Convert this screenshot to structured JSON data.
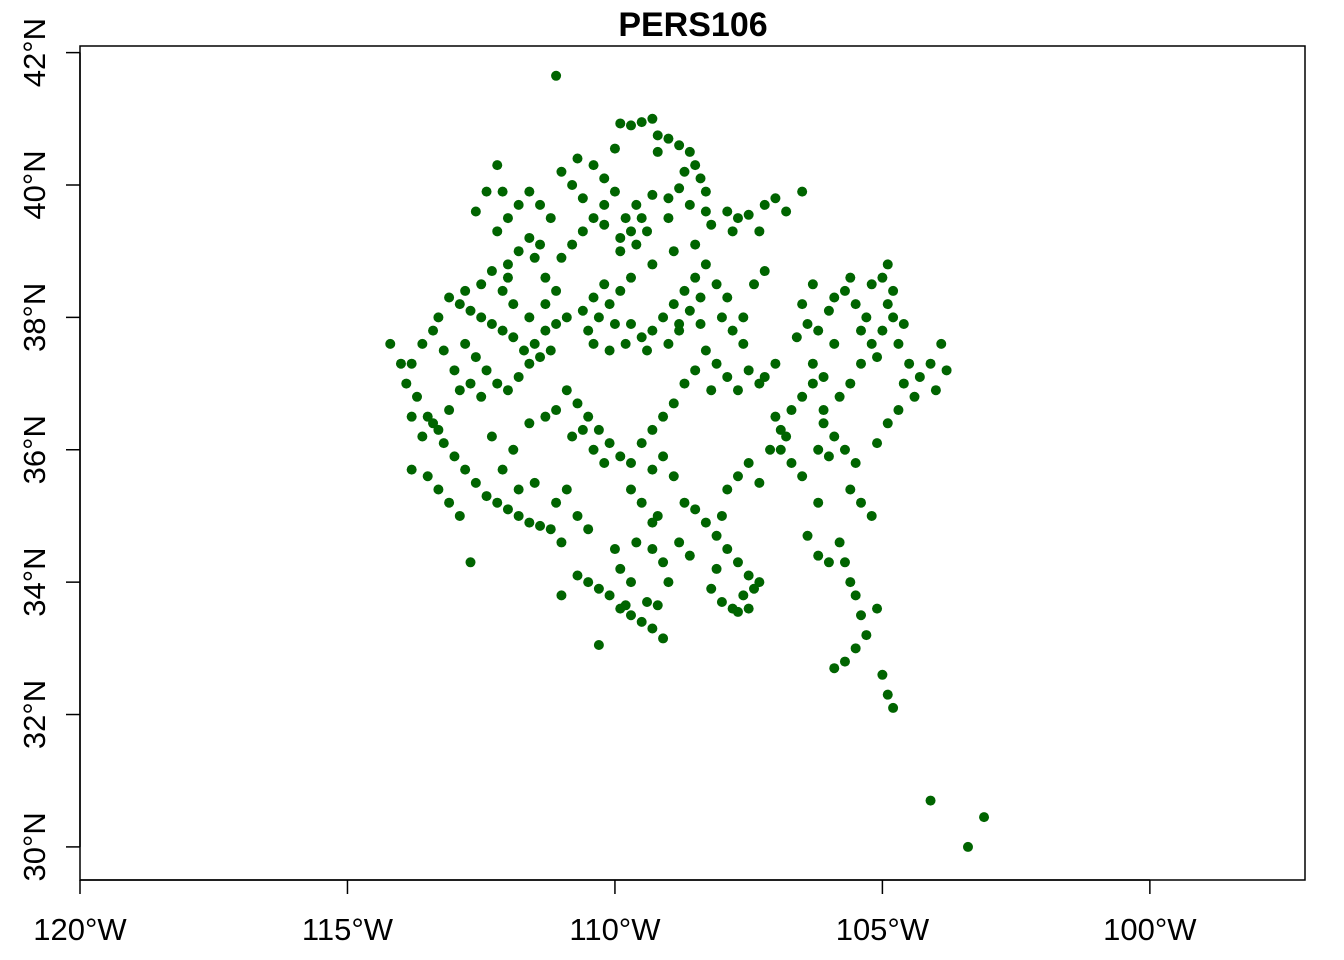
{
  "chart_data": {
    "type": "scatter",
    "title": "PERS106",
    "xlabel": "",
    "ylabel": "",
    "xlim": [
      -120,
      -97.1
    ],
    "ylim": [
      29.5,
      42.1
    ],
    "grid": false,
    "legend": "none",
    "point_color": "#006400",
    "x_ticks": [
      {
        "value": -120,
        "label": "120°W"
      },
      {
        "value": -115,
        "label": "115°W"
      },
      {
        "value": -110,
        "label": "110°W"
      },
      {
        "value": -105,
        "label": "105°W"
      },
      {
        "value": -100,
        "label": "100°W"
      }
    ],
    "y_ticks": [
      {
        "value": 30,
        "label": "30°N"
      },
      {
        "value": 32,
        "label": "32°N"
      },
      {
        "value": 34,
        "label": "34°N"
      },
      {
        "value": 36,
        "label": "36°N"
      },
      {
        "value": 38,
        "label": "38°N"
      },
      {
        "value": 40,
        "label": "40°N"
      },
      {
        "value": 42,
        "label": "42°N"
      }
    ],
    "points": [
      [
        -111.1,
        41.65
      ],
      [
        -109.3,
        41.0
      ],
      [
        -109.5,
        40.95
      ],
      [
        -109.7,
        40.9
      ],
      [
        -109.9,
        40.93
      ],
      [
        -110.0,
        40.55
      ],
      [
        -109.2,
        40.75
      ],
      [
        -109.0,
        40.7
      ],
      [
        -108.8,
        40.6
      ],
      [
        -108.6,
        40.5
      ],
      [
        -108.5,
        40.3
      ],
      [
        -109.2,
        40.5
      ],
      [
        -108.7,
        40.2
      ],
      [
        -108.4,
        40.1
      ],
      [
        -108.3,
        39.9
      ],
      [
        -108.8,
        39.95
      ],
      [
        -109.0,
        39.8
      ],
      [
        -109.3,
        39.85
      ],
      [
        -109.6,
        39.7
      ],
      [
        -109.8,
        39.5
      ],
      [
        -110.2,
        39.4
      ],
      [
        -109.9,
        39.2
      ],
      [
        -109.6,
        39.1
      ],
      [
        -109.4,
        39.3
      ],
      [
        -109.0,
        39.5
      ],
      [
        -108.6,
        39.7
      ],
      [
        -108.3,
        39.6
      ],
      [
        -107.9,
        39.6
      ],
      [
        -107.7,
        39.5
      ],
      [
        -107.5,
        39.55
      ],
      [
        -107.2,
        39.7
      ],
      [
        -107.0,
        39.8
      ],
      [
        -106.8,
        39.6
      ],
      [
        -106.5,
        39.9
      ],
      [
        -107.3,
        39.3
      ],
      [
        -107.8,
        39.3
      ],
      [
        -108.2,
        39.4
      ],
      [
        -108.5,
        39.1
      ],
      [
        -108.9,
        39.0
      ],
      [
        -109.3,
        38.8
      ],
      [
        -109.7,
        38.6
      ],
      [
        -109.9,
        38.4
      ],
      [
        -110.1,
        38.2
      ],
      [
        -110.3,
        38.0
      ],
      [
        -110.5,
        37.8
      ],
      [
        -110.4,
        37.6
      ],
      [
        -110.1,
        37.5
      ],
      [
        -109.8,
        37.6
      ],
      [
        -109.5,
        37.7
      ],
      [
        -109.3,
        37.8
      ],
      [
        -109.1,
        38.0
      ],
      [
        -108.9,
        38.2
      ],
      [
        -108.7,
        38.4
      ],
      [
        -108.5,
        38.6
      ],
      [
        -108.3,
        38.8
      ],
      [
        -108.1,
        38.5
      ],
      [
        -107.9,
        38.3
      ],
      [
        -107.6,
        38.0
      ],
      [
        -107.4,
        38.5
      ],
      [
        -107.2,
        38.7
      ],
      [
        -108.0,
        38.0
      ],
      [
        -108.4,
        37.9
      ],
      [
        -108.8,
        37.8
      ],
      [
        -109.0,
        37.6
      ],
      [
        -109.4,
        37.5
      ],
      [
        -109.7,
        37.9
      ],
      [
        -110.0,
        37.9
      ],
      [
        -110.2,
        38.5
      ],
      [
        -110.4,
        38.3
      ],
      [
        -110.6,
        38.1
      ],
      [
        -110.9,
        38.0
      ],
      [
        -111.1,
        37.9
      ],
      [
        -111.3,
        37.8
      ],
      [
        -111.5,
        37.6
      ],
      [
        -111.7,
        37.5
      ],
      [
        -111.9,
        37.7
      ],
      [
        -112.1,
        37.8
      ],
      [
        -112.3,
        37.9
      ],
      [
        -112.5,
        38.0
      ],
      [
        -112.7,
        38.1
      ],
      [
        -112.9,
        38.2
      ],
      [
        -113.1,
        38.3
      ],
      [
        -112.8,
        37.6
      ],
      [
        -112.6,
        37.4
      ],
      [
        -112.4,
        37.2
      ],
      [
        -112.2,
        37.0
      ],
      [
        -112.0,
        36.9
      ],
      [
        -111.8,
        37.1
      ],
      [
        -111.6,
        37.3
      ],
      [
        -111.4,
        37.4
      ],
      [
        -111.2,
        37.5
      ],
      [
        -112.0,
        38.6
      ],
      [
        -112.3,
        38.7
      ],
      [
        -112.5,
        38.5
      ],
      [
        -112.8,
        38.4
      ],
      [
        -113.3,
        38.0
      ],
      [
        -113.6,
        37.6
      ],
      [
        -113.8,
        37.3
      ],
      [
        -113.9,
        37.0
      ],
      [
        -113.7,
        36.8
      ],
      [
        -113.5,
        36.5
      ],
      [
        -113.3,
        36.3
      ],
      [
        -113.1,
        36.6
      ],
      [
        -112.9,
        36.9
      ],
      [
        -114.2,
        37.6
      ],
      [
        -114.0,
        37.3
      ],
      [
        -113.8,
        36.5
      ],
      [
        -113.6,
        36.2
      ],
      [
        -113.4,
        36.4
      ],
      [
        -113.2,
        36.1
      ],
      [
        -113.0,
        35.9
      ],
      [
        -112.8,
        35.7
      ],
      [
        -112.6,
        35.5
      ],
      [
        -112.4,
        35.3
      ],
      [
        -112.2,
        35.2
      ],
      [
        -112.0,
        35.1
      ],
      [
        -111.8,
        35.0
      ],
      [
        -111.6,
        34.9
      ],
      [
        -111.4,
        34.85
      ],
      [
        -113.8,
        35.7
      ],
      [
        -113.5,
        35.6
      ],
      [
        -113.3,
        35.4
      ],
      [
        -113.1,
        35.2
      ],
      [
        -112.9,
        35.0
      ],
      [
        -112.7,
        34.3
      ],
      [
        -111.0,
        34.6
      ],
      [
        -111.2,
        34.8
      ],
      [
        -111.0,
        33.8
      ],
      [
        -110.7,
        34.1
      ],
      [
        -110.5,
        34.0
      ],
      [
        -110.3,
        33.9
      ],
      [
        -110.1,
        33.8
      ],
      [
        -109.9,
        33.6
      ],
      [
        -109.7,
        33.5
      ],
      [
        -109.5,
        33.4
      ],
      [
        -109.3,
        33.3
      ],
      [
        -109.1,
        33.15
      ],
      [
        -110.3,
        33.05
      ],
      [
        -109.8,
        33.65
      ],
      [
        -109.4,
        33.7
      ],
      [
        -109.2,
        33.65
      ],
      [
        -110.0,
        34.5
      ],
      [
        -109.9,
        34.2
      ],
      [
        -109.7,
        34.0
      ],
      [
        -109.6,
        34.6
      ],
      [
        -109.3,
        34.5
      ],
      [
        -109.1,
        34.3
      ],
      [
        -109.0,
        34.0
      ],
      [
        -109.2,
        35.0
      ],
      [
        -109.5,
        35.2
      ],
      [
        -109.7,
        35.4
      ],
      [
        -109.3,
        35.7
      ],
      [
        -109.1,
        35.9
      ],
      [
        -108.9,
        35.6
      ],
      [
        -108.7,
        35.2
      ],
      [
        -108.5,
        35.1
      ],
      [
        -108.3,
        34.9
      ],
      [
        -108.1,
        34.7
      ],
      [
        -107.9,
        34.5
      ],
      [
        -107.7,
        34.3
      ],
      [
        -107.5,
        34.1
      ],
      [
        -107.3,
        34.0
      ],
      [
        -107.6,
        33.8
      ],
      [
        -107.8,
        33.6
      ],
      [
        -108.0,
        33.7
      ],
      [
        -108.2,
        33.9
      ],
      [
        -108.1,
        34.2
      ],
      [
        -108.0,
        35.0
      ],
      [
        -107.9,
        35.4
      ],
      [
        -107.7,
        35.6
      ],
      [
        -107.5,
        35.8
      ],
      [
        -107.3,
        35.5
      ],
      [
        -107.1,
        36.0
      ],
      [
        -106.9,
        36.3
      ],
      [
        -106.7,
        36.6
      ],
      [
        -106.5,
        36.8
      ],
      [
        -106.3,
        37.0
      ],
      [
        -106.1,
        36.4
      ],
      [
        -105.9,
        36.2
      ],
      [
        -105.7,
        36.0
      ],
      [
        -105.5,
        35.8
      ],
      [
        -105.6,
        35.4
      ],
      [
        -105.4,
        35.2
      ],
      [
        -105.2,
        35.0
      ],
      [
        -105.8,
        34.6
      ],
      [
        -105.7,
        34.3
      ],
      [
        -105.6,
        34.0
      ],
      [
        -105.5,
        33.8
      ],
      [
        -105.4,
        33.5
      ],
      [
        -105.3,
        33.2
      ],
      [
        -105.5,
        33.0
      ],
      [
        -105.7,
        32.8
      ],
      [
        -105.9,
        32.7
      ],
      [
        -105.1,
        33.6
      ],
      [
        -105.0,
        32.6
      ],
      [
        -104.9,
        32.3
      ],
      [
        -104.8,
        32.1
      ],
      [
        -104.1,
        30.7
      ],
      [
        -103.1,
        30.45
      ],
      [
        -103.4,
        30.0
      ],
      [
        -106.2,
        35.2
      ],
      [
        -106.4,
        34.7
      ],
      [
        -106.2,
        34.4
      ],
      [
        -106.0,
        34.3
      ],
      [
        -106.5,
        35.6
      ],
      [
        -106.7,
        35.8
      ],
      [
        -106.9,
        36.0
      ],
      [
        -106.2,
        36.0
      ],
      [
        -106.0,
        35.9
      ],
      [
        -106.1,
        36.6
      ],
      [
        -105.8,
        36.8
      ],
      [
        -105.6,
        37.0
      ],
      [
        -105.4,
        37.3
      ],
      [
        -105.2,
        37.6
      ],
      [
        -105.0,
        37.8
      ],
      [
        -104.8,
        38.0
      ],
      [
        -104.6,
        37.9
      ],
      [
        -105.3,
        38.0
      ],
      [
        -105.5,
        38.2
      ],
      [
        -105.7,
        38.4
      ],
      [
        -105.9,
        38.3
      ],
      [
        -105.2,
        38.5
      ],
      [
        -105.0,
        38.6
      ],
      [
        -104.9,
        38.8
      ],
      [
        -105.6,
        38.6
      ],
      [
        -106.3,
        38.5
      ],
      [
        -106.5,
        38.2
      ],
      [
        -106.4,
        37.9
      ],
      [
        -106.6,
        37.7
      ],
      [
        -106.3,
        37.3
      ],
      [
        -106.1,
        37.1
      ],
      [
        -105.9,
        37.6
      ],
      [
        -104.7,
        37.6
      ],
      [
        -104.5,
        37.3
      ],
      [
        -104.3,
        37.1
      ],
      [
        -104.1,
        37.3
      ],
      [
        -103.9,
        37.6
      ],
      [
        -103.8,
        37.2
      ],
      [
        -104.0,
        36.9
      ],
      [
        -104.4,
        36.8
      ],
      [
        -104.7,
        36.6
      ],
      [
        -104.9,
        36.4
      ],
      [
        -105.1,
        36.1
      ],
      [
        -106.8,
        36.2
      ],
      [
        -107.0,
        36.5
      ],
      [
        -107.3,
        37.0
      ],
      [
        -107.5,
        37.2
      ],
      [
        -107.7,
        36.9
      ],
      [
        -107.9,
        37.1
      ],
      [
        -108.1,
        37.3
      ],
      [
        -108.3,
        37.5
      ],
      [
        -108.5,
        37.2
      ],
      [
        -108.7,
        37.0
      ],
      [
        -108.9,
        36.7
      ],
      [
        -109.1,
        36.5
      ],
      [
        -109.3,
        36.3
      ],
      [
        -109.5,
        36.1
      ],
      [
        -109.7,
        35.8
      ],
      [
        -109.9,
        35.9
      ],
      [
        -110.1,
        36.1
      ],
      [
        -110.3,
        36.3
      ],
      [
        -110.5,
        36.5
      ],
      [
        -110.7,
        36.7
      ],
      [
        -110.9,
        36.9
      ],
      [
        -111.1,
        36.6
      ],
      [
        -110.6,
        36.3
      ],
      [
        -110.4,
        36.0
      ],
      [
        -110.2,
        35.8
      ],
      [
        -110.8,
        36.2
      ],
      [
        -111.3,
        36.5
      ],
      [
        -111.6,
        36.4
      ],
      [
        -111.9,
        36.0
      ],
      [
        -112.1,
        35.7
      ],
      [
        -111.5,
        35.5
      ],
      [
        -111.8,
        35.4
      ],
      [
        -112.3,
        36.2
      ],
      [
        -112.5,
        36.8
      ],
      [
        -112.7,
        37.0
      ],
      [
        -113.0,
        37.2
      ],
      [
        -113.2,
        37.5
      ],
      [
        -113.4,
        37.8
      ],
      [
        -111.0,
        38.9
      ],
      [
        -110.8,
        39.1
      ],
      [
        -110.6,
        39.3
      ],
      [
        -110.4,
        39.5
      ],
      [
        -110.6,
        39.8
      ],
      [
        -110.8,
        40.0
      ],
      [
        -111.0,
        40.2
      ],
      [
        -110.7,
        40.4
      ],
      [
        -110.4,
        40.3
      ],
      [
        -110.2,
        40.1
      ],
      [
        -110.0,
        39.9
      ],
      [
        -110.2,
        39.7
      ],
      [
        -111.2,
        39.5
      ],
      [
        -111.4,
        39.7
      ],
      [
        -111.6,
        39.9
      ],
      [
        -111.6,
        39.2
      ],
      [
        -111.8,
        39.0
      ],
      [
        -112.0,
        38.8
      ],
      [
        -111.5,
        38.9
      ],
      [
        -111.3,
        38.6
      ],
      [
        -111.1,
        38.4
      ],
      [
        -111.3,
        38.2
      ],
      [
        -111.6,
        38.0
      ],
      [
        -111.9,
        38.2
      ],
      [
        -112.1,
        38.4
      ],
      [
        -111.4,
        39.1
      ],
      [
        -112.2,
        39.3
      ],
      [
        -112.0,
        39.5
      ],
      [
        -111.8,
        39.7
      ],
      [
        -112.2,
        40.3
      ],
      [
        -112.4,
        39.9
      ],
      [
        -112.6,
        39.6
      ],
      [
        -112.1,
        39.9
      ],
      [
        -109.5,
        39.5
      ],
      [
        -109.7,
        39.3
      ],
      [
        -109.9,
        39.0
      ],
      [
        -108.4,
        38.3
      ],
      [
        -108.6,
        38.1
      ],
      [
        -108.8,
        37.9
      ],
      [
        -107.8,
        37.8
      ],
      [
        -107.6,
        37.6
      ],
      [
        -107.0,
        37.3
      ],
      [
        -107.2,
        37.1
      ],
      [
        -108.2,
        36.9
      ],
      [
        -110.9,
        35.4
      ],
      [
        -111.1,
        35.2
      ],
      [
        -110.7,
        35.0
      ],
      [
        -110.5,
        34.8
      ],
      [
        -109.3,
        34.9
      ],
      [
        -108.8,
        34.6
      ],
      [
        -108.6,
        34.4
      ],
      [
        -107.4,
        33.9
      ],
      [
        -107.5,
        33.6
      ],
      [
        -107.7,
        33.55
      ],
      [
        -104.9,
        38.2
      ],
      [
        -105.4,
        37.8
      ],
      [
        -105.1,
        37.4
      ],
      [
        -104.6,
        37.0
      ],
      [
        -106.0,
        38.1
      ],
      [
        -106.2,
        37.8
      ],
      [
        -104.8,
        38.4
      ]
    ]
  }
}
